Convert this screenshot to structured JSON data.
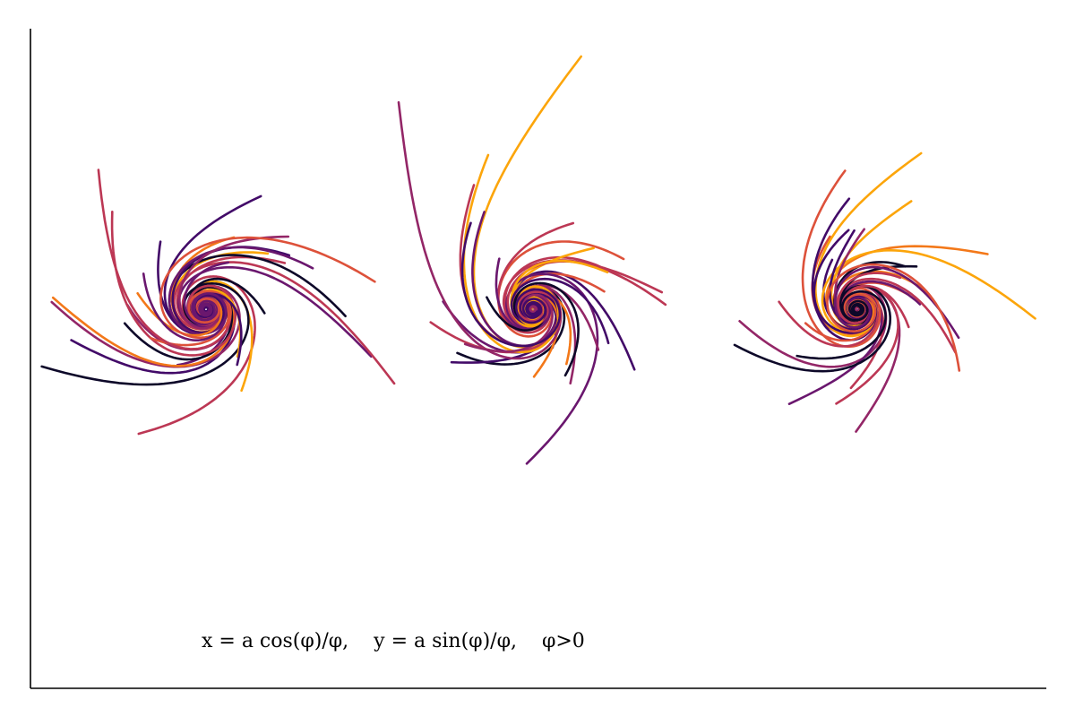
{
  "chart_data": {
    "type": "line",
    "title": "",
    "xlabel": "",
    "ylabel": "",
    "annotation": "x = a cos(φ)/φ,    y = a sin(φ)/φ,    φ>0",
    "curve": "hyperbolic spiral",
    "grid": false,
    "axes_visible": [
      "left",
      "bottom"
    ],
    "colormap": "inferno",
    "colors": [
      "#0d0829",
      "#420a68",
      "#6a176e",
      "#932667",
      "#bc3754",
      "#dd513a",
      "#f37819",
      "#fca50a"
    ],
    "panels": [
      {
        "name": "left spiral cluster",
        "series_count": 30
      },
      {
        "name": "middle spiral cluster",
        "series_count": 30
      },
      {
        "name": "right spiral cluster",
        "series_count": 30
      }
    ],
    "phi_range": [
      0.5,
      30
    ]
  }
}
